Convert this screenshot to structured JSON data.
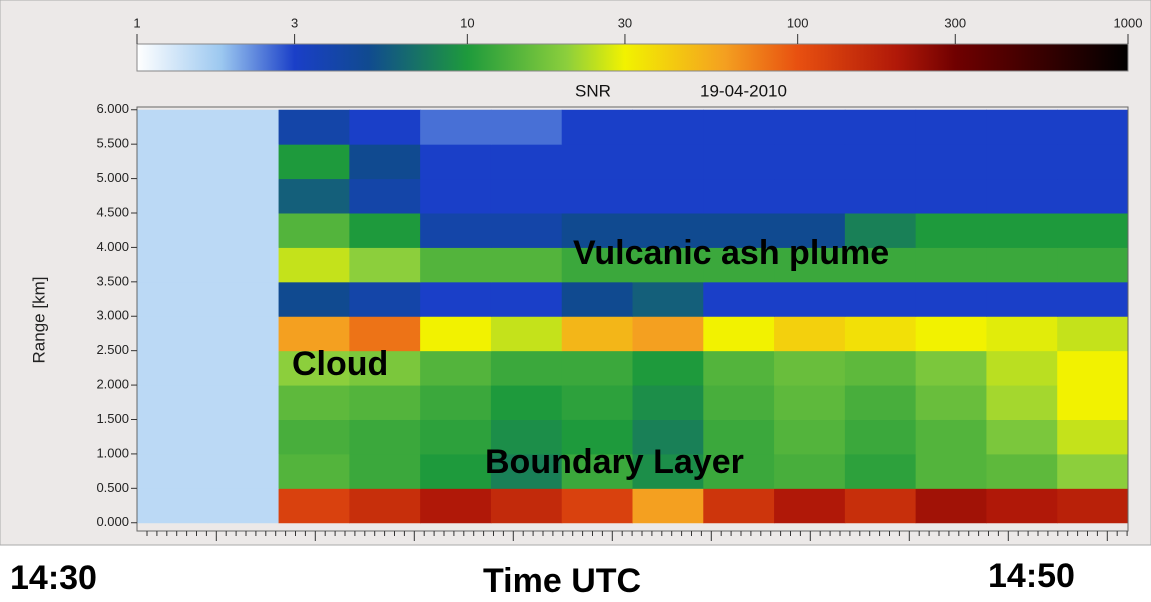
{
  "chart_data": {
    "type": "heatmap",
    "title": "SNR",
    "subtitle": "19-04-2010",
    "y_label": "Range [km]",
    "x_label": "Time UTC",
    "x_labels": [
      "14:30",
      "14:50"
    ],
    "annotations": [
      "Vulcanic ash plume",
      "Cloud",
      "Boundary Layer"
    ],
    "ylim": [
      -0.12,
      6.04
    ],
    "yticks": [
      {
        "value": 0,
        "label": "0.000"
      },
      {
        "value": 0.5,
        "label": "0.500"
      },
      {
        "value": 1,
        "label": "1.000"
      },
      {
        "value": 1.5,
        "label": "1.500"
      },
      {
        "value": 2,
        "label": "2.000"
      },
      {
        "value": 2.5,
        "label": "2.500"
      },
      {
        "value": 3,
        "label": "3.000"
      },
      {
        "value": 3.5,
        "label": "3.500"
      },
      {
        "value": 4,
        "label": "4.000"
      },
      {
        "value": 4.5,
        "label": "4.500"
      },
      {
        "value": 5,
        "label": "5.000"
      },
      {
        "value": 5.5,
        "label": "5.500"
      },
      {
        "value": 6,
        "label": "6.000"
      }
    ],
    "row_edges": [
      0,
      0.5,
      1,
      1.5,
      2,
      2.5,
      3,
      3.5,
      4,
      4.5,
      5,
      5.5,
      6
    ],
    "z": [
      [
        1.5,
        1.5,
        120,
        150,
        200,
        160,
        120,
        60,
        140,
        200,
        150,
        220,
        200,
        180
      ],
      [
        1.5,
        1.5,
        14,
        12,
        10,
        8,
        12,
        9,
        12,
        13,
        11,
        14,
        15,
        20
      ],
      [
        1.5,
        1.5,
        13,
        12,
        11,
        9,
        10,
        8,
        12,
        14,
        12,
        14,
        18,
        25
      ],
      [
        1.5,
        1.5,
        15,
        14,
        12,
        10,
        11,
        9,
        13,
        15,
        13,
        16,
        22,
        30
      ],
      [
        1.5,
        1.5,
        20,
        18,
        14,
        12,
        12,
        10,
        14,
        16,
        15,
        18,
        24,
        30
      ],
      [
        1.5,
        1.5,
        60,
        80,
        30,
        25,
        50,
        60,
        30,
        40,
        35,
        30,
        28,
        25
      ],
      [
        1.5,
        1.5,
        5,
        4,
        3,
        3,
        5,
        6,
        3,
        3,
        3,
        3,
        3,
        3
      ],
      [
        1.5,
        1.5,
        25,
        20,
        14,
        14,
        12,
        12,
        12,
        12,
        12,
        12,
        12,
        12
      ],
      [
        1.5,
        1.5,
        14,
        10,
        4,
        4,
        5,
        5,
        5,
        5,
        8,
        10,
        10,
        10
      ],
      [
        1.5,
        1.5,
        6,
        4,
        3,
        3,
        3,
        3,
        3,
        3,
        3,
        3,
        3,
        3
      ],
      [
        1.5,
        1.5,
        10,
        5,
        3,
        3,
        3,
        3,
        3,
        3,
        3,
        3,
        3,
        3
      ],
      [
        1.5,
        1.5,
        4,
        3,
        2.5,
        2.5,
        3,
        3,
        3,
        3,
        3,
        3,
        3,
        3
      ]
    ],
    "clim": [
      1,
      1000
    ],
    "log_scale": true,
    "cticks": [
      1,
      3,
      10,
      30,
      100,
      300,
      1000
    ],
    "colormap": [
      {
        "value": 1,
        "color": "#ffffff"
      },
      {
        "value": 1.8,
        "color": "#9cc8f0"
      },
      {
        "value": 3,
        "color": "#1a3fc8"
      },
      {
        "value": 5,
        "color": "#104a90"
      },
      {
        "value": 10,
        "color": "#1e9a3c"
      },
      {
        "value": 20,
        "color": "#8ccf3c"
      },
      {
        "value": 30,
        "color": "#f2f200"
      },
      {
        "value": 60,
        "color": "#f4a020"
      },
      {
        "value": 100,
        "color": "#e85010"
      },
      {
        "value": 200,
        "color": "#b01808"
      },
      {
        "value": 300,
        "color": "#700000"
      },
      {
        "value": 1000,
        "color": "#000000"
      }
    ]
  }
}
